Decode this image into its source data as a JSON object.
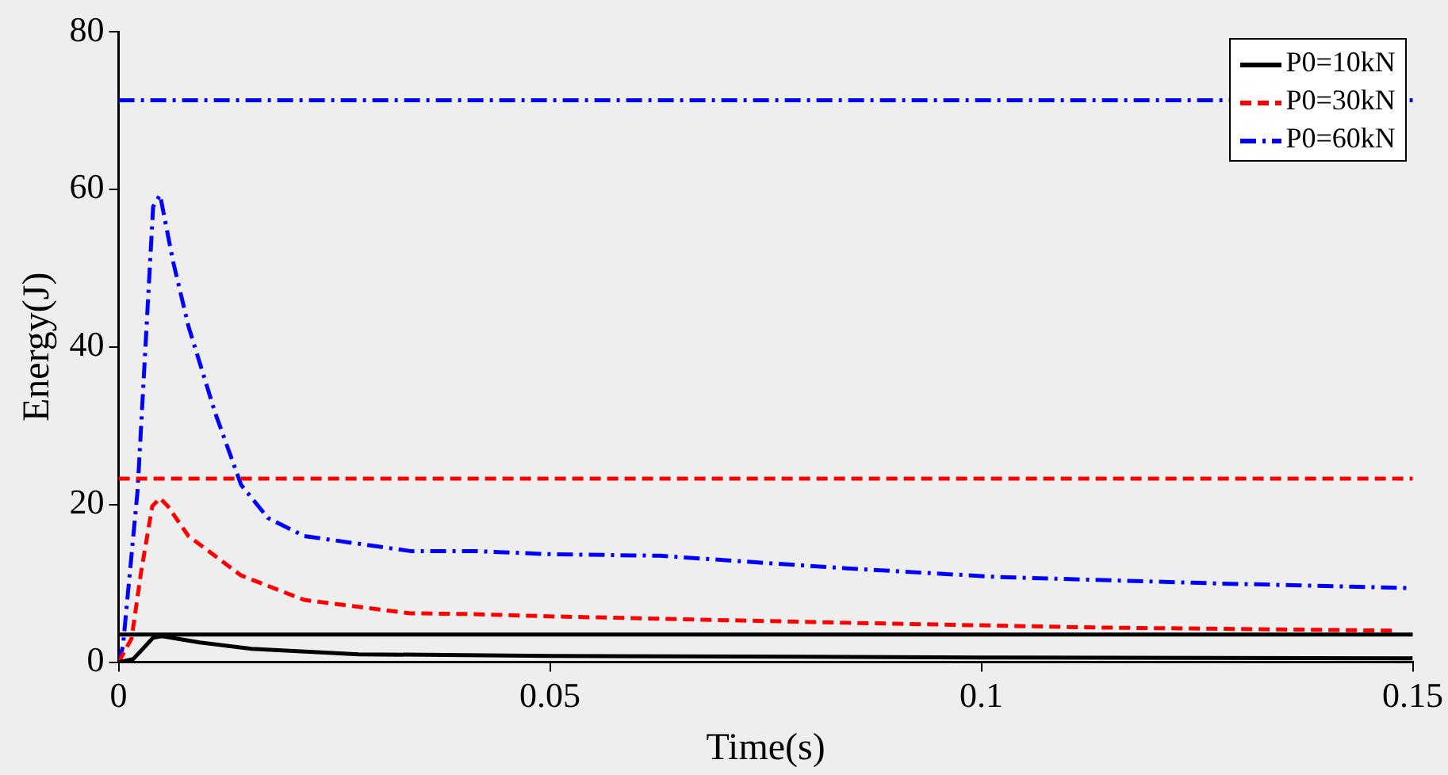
{
  "chart_data": {
    "type": "line",
    "xlabel": "Time(s)",
    "ylabel": "Energy(J)",
    "xlim": [
      0,
      0.15
    ],
    "xticks": [
      0,
      0.05,
      0.1,
      0.15
    ],
    "ylim": [
      0,
      80
    ],
    "yticks": [
      0,
      20,
      40,
      60,
      80
    ],
    "grid": false,
    "legend": "top right",
    "marker": "none",
    "series": [
      {
        "name": "P0=10kN",
        "color": "#000000",
        "line_style": "solid",
        "x": [
          0,
          0.0017,
          0.004,
          0.005,
          0.0094,
          0.0154,
          0.0278,
          0.05,
          0.1,
          0.15
        ],
        "values": [
          0,
          0.4,
          3.1,
          3.3,
          2.5,
          1.7,
          1.0,
          0.8,
          0.6,
          0.5
        ]
      },
      {
        "name": "P0=30kN",
        "color": "#ff0000",
        "line_style": "dashed",
        "x": [
          0,
          0.0015,
          0.0026,
          0.0039,
          0.0048,
          0.0057,
          0.0081,
          0.0142,
          0.0215,
          0.0338,
          0.041,
          0.0504,
          0.0844,
          0.113,
          0.148
        ],
        "values": [
          0,
          3,
          11.4,
          19.8,
          20.8,
          19.8,
          16,
          11,
          7.9,
          6.2,
          6.1,
          5.8,
          5,
          4.4,
          4.0
        ]
      },
      {
        "name": "P0=60kN",
        "color": "#0000ff",
        "line_style": "dashdot",
        "x": [
          0,
          0.0005,
          0.0022,
          0.004,
          0.0048,
          0.0063,
          0.0081,
          0.0112,
          0.0142,
          0.0173,
          0.0215,
          0.0338,
          0.0412,
          0.05,
          0.0627,
          0.0844,
          0.102,
          0.127,
          0.1496
        ],
        "values": [
          0,
          2,
          21.8,
          57.8,
          59.3,
          50.9,
          42.6,
          31.6,
          22.5,
          18.3,
          16,
          14.1,
          14.1,
          13.7,
          13.5,
          11.9,
          10.8,
          10,
          9.4
        ]
      }
    ],
    "ref_lines": [
      {
        "axis": "y",
        "value": 3.5,
        "color": "#000000",
        "line_style": "solid"
      },
      {
        "axis": "y",
        "value": 23.3,
        "color": "#ff0000",
        "line_style": "dashed"
      },
      {
        "axis": "y",
        "value": 71.3,
        "color": "#0000ff",
        "line_style": "dashdot"
      }
    ]
  }
}
